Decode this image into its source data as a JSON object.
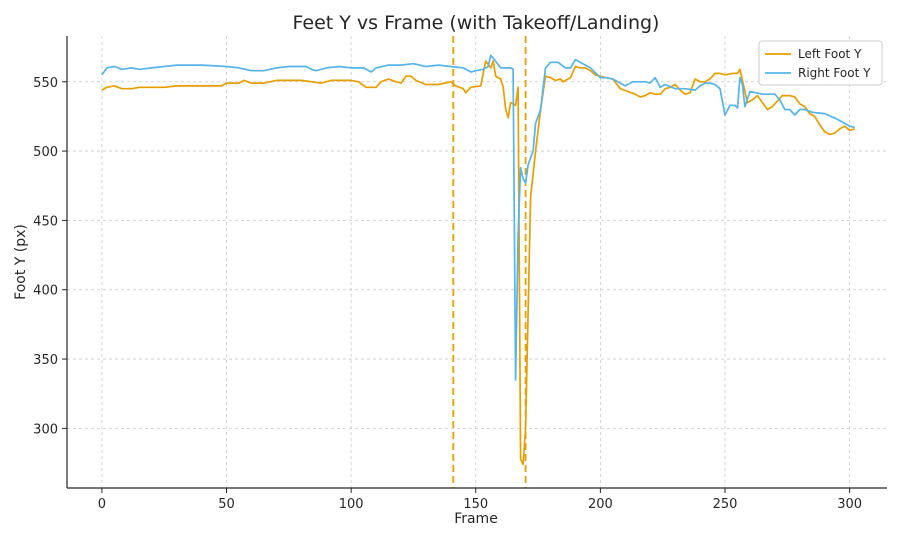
{
  "chart_data": {
    "type": "line",
    "title": "Feet Y vs Frame (with Takeoff/Landing)",
    "xlabel": "Frame",
    "ylabel": "Foot Y (px)",
    "xlim": [
      -14,
      315
    ],
    "ylim": [
      257,
      583
    ],
    "xticks": [
      0,
      50,
      100,
      150,
      200,
      250,
      300
    ],
    "yticks": [
      300,
      350,
      400,
      450,
      500,
      550
    ],
    "grid": true,
    "legend_position": "top-right",
    "vlines": [
      {
        "x": 141,
        "color": "#E69F00",
        "style": "dashed"
      },
      {
        "x": 170,
        "color": "#E69F00",
        "style": "dashed"
      }
    ],
    "series": [
      {
        "name": "Left Foot Y",
        "color": "#E69F00",
        "points": [
          [
            0,
            544
          ],
          [
            2,
            546
          ],
          [
            5,
            547
          ],
          [
            8,
            545
          ],
          [
            12,
            545
          ],
          [
            15,
            546
          ],
          [
            20,
            546
          ],
          [
            25,
            546
          ],
          [
            30,
            547
          ],
          [
            40,
            547
          ],
          [
            48,
            547
          ],
          [
            50,
            549
          ],
          [
            55,
            549
          ],
          [
            57,
            551
          ],
          [
            60,
            549
          ],
          [
            65,
            549
          ],
          [
            70,
            551
          ],
          [
            80,
            551
          ],
          [
            88,
            549
          ],
          [
            92,
            551
          ],
          [
            100,
            551
          ],
          [
            103,
            550
          ],
          [
            106,
            546
          ],
          [
            110,
            546
          ],
          [
            112,
            550
          ],
          [
            115,
            552
          ],
          [
            118,
            550
          ],
          [
            120,
            549
          ],
          [
            122,
            554
          ],
          [
            124,
            554
          ],
          [
            126,
            551
          ],
          [
            130,
            548
          ],
          [
            135,
            548
          ],
          [
            140,
            550
          ],
          [
            142,
            547
          ],
          [
            145,
            545
          ],
          [
            146,
            542
          ],
          [
            148,
            546
          ],
          [
            152,
            547
          ],
          [
            154,
            565
          ],
          [
            156,
            560
          ],
          [
            157,
            565
          ],
          [
            158,
            554
          ],
          [
            160,
            552
          ],
          [
            161,
            546
          ],
          [
            162,
            530
          ],
          [
            163,
            524
          ],
          [
            164,
            535
          ],
          [
            166,
            533
          ],
          [
            167,
            546
          ],
          [
            168,
            278
          ],
          [
            169,
            274
          ],
          [
            170,
            300
          ],
          [
            172,
            467
          ],
          [
            174,
            500
          ],
          [
            176,
            530
          ],
          [
            178,
            554
          ],
          [
            180,
            553
          ],
          [
            182,
            551
          ],
          [
            184,
            552
          ],
          [
            185,
            550
          ],
          [
            188,
            553
          ],
          [
            190,
            561
          ],
          [
            192,
            560
          ],
          [
            194,
            560
          ],
          [
            196,
            558
          ],
          [
            198,
            555
          ],
          [
            200,
            554
          ],
          [
            202,
            553
          ],
          [
            205,
            552
          ],
          [
            208,
            545
          ],
          [
            211,
            543
          ],
          [
            214,
            541
          ],
          [
            216,
            539
          ],
          [
            218,
            540
          ],
          [
            220,
            542
          ],
          [
            222,
            541
          ],
          [
            224,
            541
          ],
          [
            226,
            545
          ],
          [
            228,
            546
          ],
          [
            230,
            548
          ],
          [
            232,
            544
          ],
          [
            234,
            541
          ],
          [
            236,
            542
          ],
          [
            238,
            552
          ],
          [
            240,
            550
          ],
          [
            242,
            550
          ],
          [
            244,
            552
          ],
          [
            246,
            556
          ],
          [
            248,
            556
          ],
          [
            250,
            555
          ],
          [
            253,
            556
          ],
          [
            255,
            556
          ],
          [
            256,
            559
          ],
          [
            257,
            551
          ],
          [
            259,
            535
          ],
          [
            261,
            537
          ],
          [
            263,
            540
          ],
          [
            265,
            535
          ],
          [
            267,
            530
          ],
          [
            269,
            532
          ],
          [
            271,
            536
          ],
          [
            273,
            540
          ],
          [
            276,
            540
          ],
          [
            278,
            539
          ],
          [
            280,
            534
          ],
          [
            282,
            532
          ],
          [
            284,
            527
          ],
          [
            286,
            525
          ],
          [
            288,
            519
          ],
          [
            290,
            514
          ],
          [
            292,
            512
          ],
          [
            294,
            513
          ],
          [
            296,
            516
          ],
          [
            298,
            518
          ],
          [
            300,
            515
          ],
          [
            302,
            516
          ]
        ]
      },
      {
        "name": "Right Foot Y",
        "color": "#56B4E9",
        "points": [
          [
            0,
            555
          ],
          [
            2,
            560
          ],
          [
            5,
            561
          ],
          [
            8,
            559
          ],
          [
            12,
            560
          ],
          [
            15,
            559
          ],
          [
            20,
            560
          ],
          [
            25,
            561
          ],
          [
            30,
            562
          ],
          [
            40,
            562
          ],
          [
            50,
            561
          ],
          [
            55,
            560
          ],
          [
            60,
            558
          ],
          [
            65,
            558
          ],
          [
            70,
            560
          ],
          [
            75,
            561
          ],
          [
            82,
            561
          ],
          [
            84,
            559
          ],
          [
            86,
            558
          ],
          [
            90,
            560
          ],
          [
            95,
            561
          ],
          [
            100,
            560
          ],
          [
            105,
            560
          ],
          [
            108,
            557
          ],
          [
            110,
            560
          ],
          [
            115,
            562
          ],
          [
            120,
            562
          ],
          [
            125,
            563
          ],
          [
            130,
            561
          ],
          [
            135,
            562
          ],
          [
            140,
            561
          ],
          [
            145,
            560
          ],
          [
            148,
            557
          ],
          [
            150,
            558
          ],
          [
            153,
            559
          ],
          [
            155,
            561
          ],
          [
            156,
            569
          ],
          [
            157,
            567
          ],
          [
            160,
            560
          ],
          [
            162,
            560
          ],
          [
            164,
            560
          ],
          [
            165,
            559
          ],
          [
            166,
            335
          ],
          [
            167,
            440
          ],
          [
            168,
            488
          ],
          [
            169,
            480
          ],
          [
            170,
            477
          ],
          [
            171,
            490
          ],
          [
            173,
            500
          ],
          [
            174,
            520
          ],
          [
            176,
            530
          ],
          [
            178,
            560
          ],
          [
            180,
            564
          ],
          [
            183,
            564
          ],
          [
            186,
            560
          ],
          [
            188,
            560
          ],
          [
            190,
            566
          ],
          [
            193,
            563
          ],
          [
            196,
            560
          ],
          [
            200,
            553
          ],
          [
            202,
            553
          ],
          [
            205,
            552
          ],
          [
            208,
            549
          ],
          [
            210,
            547
          ],
          [
            213,
            550
          ],
          [
            215,
            550
          ],
          [
            218,
            550
          ],
          [
            220,
            549
          ],
          [
            222,
            553
          ],
          [
            224,
            546
          ],
          [
            226,
            548
          ],
          [
            230,
            545
          ],
          [
            234,
            545
          ],
          [
            238,
            544
          ],
          [
            240,
            547
          ],
          [
            242,
            549
          ],
          [
            244,
            549
          ],
          [
            246,
            548
          ],
          [
            248,
            545
          ],
          [
            250,
            526
          ],
          [
            252,
            533
          ],
          [
            254,
            533
          ],
          [
            255,
            531
          ],
          [
            256,
            553
          ],
          [
            257,
            548
          ],
          [
            258,
            532
          ],
          [
            260,
            543
          ],
          [
            265,
            541
          ],
          [
            270,
            541
          ],
          [
            272,
            537
          ],
          [
            274,
            530
          ],
          [
            276,
            530
          ],
          [
            278,
            526
          ],
          [
            280,
            530
          ],
          [
            282,
            530
          ],
          [
            285,
            528
          ],
          [
            290,
            527
          ],
          [
            295,
            523
          ],
          [
            298,
            520
          ],
          [
            300,
            518
          ],
          [
            302,
            517
          ]
        ]
      }
    ]
  }
}
